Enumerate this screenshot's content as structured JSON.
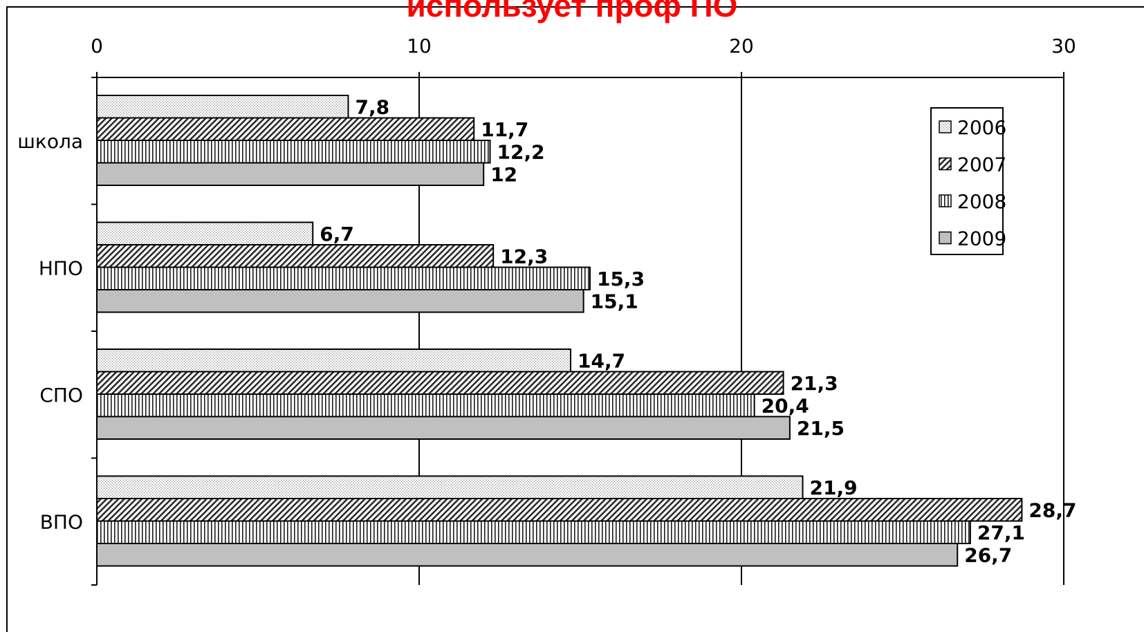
{
  "chart_data": {
    "type": "bar",
    "orientation": "horizontal",
    "title": "использует проф ПО",
    "title_color": "#ff0000",
    "categories": [
      "школа",
      "НПО",
      "СПО",
      "ВПО"
    ],
    "series": [
      {
        "name": "2006",
        "values": [
          7.8,
          6.7,
          14.7,
          21.9
        ],
        "value_labels": [
          "7,8",
          "6,7",
          "14,7",
          "21,9"
        ],
        "pattern": "dots",
        "fill": "#ececec"
      },
      {
        "name": "2007",
        "values": [
          11.7,
          12.3,
          21.3,
          28.7
        ],
        "value_labels": [
          "11,7",
          "12,3",
          "21,3",
          "28,7"
        ],
        "pattern": "diagonal",
        "fill": "#9a9a9a"
      },
      {
        "name": "2008",
        "values": [
          12.2,
          15.3,
          20.4,
          27.1
        ],
        "value_labels": [
          "12,2",
          "15,3",
          "20,4",
          "27,1"
        ],
        "pattern": "vertical",
        "fill": "#d9d9d9"
      },
      {
        "name": "2009",
        "values": [
          12,
          15.1,
          21.5,
          26.7
        ],
        "value_labels": [
          "12",
          "15,1",
          "21,5",
          "26,7"
        ],
        "pattern": "solid",
        "fill": "#c0c0c0"
      }
    ],
    "xlim": [
      0,
      30
    ],
    "xticks": [
      0,
      10,
      20,
      30
    ],
    "xtick_labels": [
      "0",
      "10",
      "20",
      "30"
    ],
    "x_axis_position": "top",
    "grid": "vertical major gridlines",
    "legend_position": "top-right",
    "xlabel": "",
    "ylabel": ""
  }
}
